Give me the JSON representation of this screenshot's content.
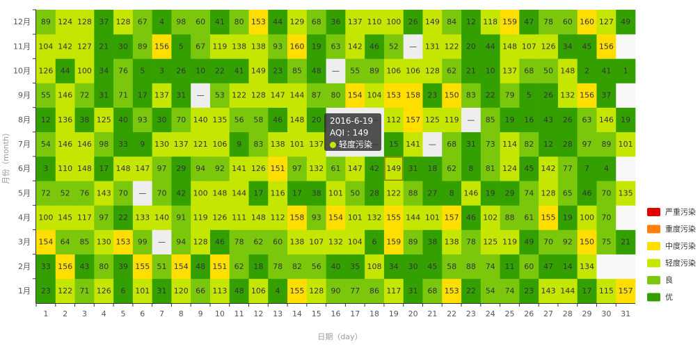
{
  "chart_data": {
    "type": "heatmap",
    "xlabel": "日期（day）",
    "ylabel": "月份（month）",
    "x": [
      "1",
      "2",
      "3",
      "4",
      "5",
      "6",
      "7",
      "8",
      "9",
      "10",
      "11",
      "12",
      "13",
      "14",
      "15",
      "16",
      "17",
      "18",
      "19",
      "20",
      "21",
      "22",
      "23",
      "24",
      "25",
      "26",
      "27",
      "28",
      "29",
      "30",
      "31"
    ],
    "y": [
      "1月",
      "2月",
      "3月",
      "4月",
      "5月",
      "6月",
      "7月",
      "8月",
      "9月",
      "10月",
      "11月",
      "12月"
    ],
    "missing_label": "—",
    "rows": [
      [
        23,
        122,
        71,
        126,
        6,
        101,
        31,
        120,
        66,
        113,
        48,
        106,
        4,
        155,
        128,
        90,
        77,
        86,
        117,
        31,
        68,
        153,
        22,
        54,
        74,
        23,
        143,
        144,
        17,
        115,
        157
      ],
      [
        33,
        156,
        43,
        80,
        39,
        155,
        51,
        154,
        48,
        151,
        62,
        18,
        78,
        82,
        56,
        40,
        35,
        108,
        34,
        30,
        45,
        58,
        88,
        74,
        11,
        60,
        47,
        14,
        134,
        null,
        null
      ],
      [
        154,
        64,
        85,
        130,
        153,
        99,
        null,
        94,
        128,
        46,
        78,
        62,
        60,
        138,
        107,
        132,
        104,
        6,
        159,
        89,
        38,
        138,
        78,
        125,
        119,
        49,
        70,
        92,
        150,
        75,
        21
      ],
      [
        100,
        145,
        117,
        97,
        22,
        133,
        140,
        91,
        119,
        126,
        111,
        148,
        112,
        158,
        93,
        154,
        101,
        132,
        155,
        144,
        101,
        157,
        46,
        102,
        88,
        61,
        155,
        19,
        100,
        70,
        null
      ],
      [
        72,
        52,
        76,
        143,
        70,
        null,
        70,
        42,
        100,
        148,
        144,
        17,
        116,
        17,
        38,
        101,
        50,
        28,
        122,
        88,
        27,
        8,
        146,
        19,
        29,
        74,
        128,
        65,
        46,
        70,
        135
      ],
      [
        3,
        110,
        148,
        17,
        148,
        147,
        97,
        29,
        94,
        92,
        141,
        126,
        151,
        97,
        132,
        61,
        147,
        42,
        149,
        31,
        18,
        62,
        8,
        81,
        124,
        45,
        142,
        77,
        7,
        4,
        null
      ],
      [
        54,
        146,
        146,
        98,
        33,
        9,
        130,
        137,
        121,
        106,
        9,
        83,
        138,
        101,
        137,
        null,
        null,
        null,
        15,
        141,
        null,
        68,
        31,
        73,
        114,
        82,
        12,
        28,
        97,
        89,
        101
      ],
      [
        12,
        136,
        38,
        125,
        40,
        93,
        30,
        70,
        140,
        135,
        56,
        58,
        46,
        148,
        20,
        null,
        null,
        null,
        112,
        157,
        125,
        119,
        null,
        85,
        19,
        16,
        43,
        26,
        63,
        146,
        19
      ],
      [
        55,
        146,
        72,
        31,
        71,
        17,
        137,
        31,
        null,
        53,
        122,
        128,
        147,
        144,
        87,
        80,
        154,
        104,
        153,
        158,
        23,
        150,
        83,
        22,
        79,
        5,
        26,
        132,
        156,
        37,
        null
      ],
      [
        126,
        44,
        100,
        34,
        76,
        5,
        3,
        26,
        10,
        22,
        41,
        149,
        23,
        85,
        48,
        null,
        55,
        89,
        106,
        106,
        128,
        62,
        21,
        10,
        137,
        68,
        50,
        148,
        2,
        41,
        1
      ],
      [
        104,
        142,
        127,
        21,
        30,
        89,
        156,
        5,
        67,
        119,
        138,
        138,
        93,
        160,
        19,
        63,
        142,
        46,
        52,
        null,
        131,
        122,
        20,
        44,
        148,
        107,
        126,
        34,
        45,
        156,
        null
      ],
      [
        89,
        124,
        128,
        37,
        128,
        67,
        4,
        98,
        60,
        41,
        80,
        153,
        44,
        129,
        68,
        36,
        137,
        110,
        100,
        26,
        149,
        84,
        12,
        118,
        159,
        47,
        78,
        60,
        160,
        127,
        49
      ]
    ],
    "invalid_days": [
      [
        2,
        30
      ],
      [
        2,
        31
      ],
      [
        4,
        31
      ],
      [
        6,
        31
      ],
      [
        9,
        31
      ],
      [
        11,
        31
      ]
    ],
    "highlight": {
      "month": 6,
      "day": 19
    },
    "visual_map": [
      {
        "label": "严重污染",
        "min": 300,
        "max": 10000,
        "color": "#e60000"
      },
      {
        "label": "重度污染",
        "min": 200,
        "max": 300,
        "color": "#ff7f0e"
      },
      {
        "label": "中度污染",
        "min": 150,
        "max": 200,
        "color": "#ffde00"
      },
      {
        "label": "轻度污染",
        "min": 100,
        "max": 150,
        "color": "#c5e600"
      },
      {
        "label": "良",
        "min": 50,
        "max": 100,
        "color": "#7ac70c"
      },
      {
        "label": "优",
        "min": 0,
        "max": 50,
        "color": "#33a000"
      }
    ],
    "missing_color": "#eeeeee",
    "invalid_color": "#f7f7f7"
  },
  "tooltip": {
    "date": "2016-6-19",
    "aqi_label": "AQI : 149",
    "level": "轻度污染",
    "dot_color": "#c5e600"
  }
}
